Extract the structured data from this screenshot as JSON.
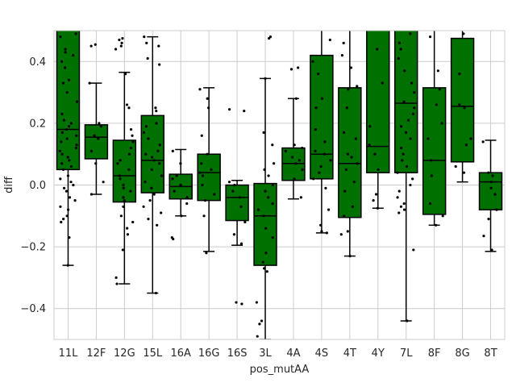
{
  "chart_data": {
    "type": "box",
    "xlabel": "pos_mutAA",
    "ylabel": "diff",
    "ylim": [
      -0.5,
      0.5
    ],
    "yticks": [
      -0.4,
      -0.2,
      0.0,
      0.2,
      0.4
    ],
    "ytick_labels": [
      "−0.4",
      "−0.2",
      "0.0",
      "0.2",
      "0.4"
    ],
    "grid": true,
    "box_color": "#007000",
    "point_color": "#000000",
    "grid_color": "#cccccc",
    "categories": [
      "11L",
      "12F",
      "12G",
      "15L",
      "16A",
      "16G",
      "16S",
      "3L",
      "4A",
      "4S",
      "4T",
      "4Y",
      "7L",
      "8F",
      "8G",
      "8T"
    ],
    "boxes": [
      {
        "label": "11L",
        "whislo": -0.26,
        "q1": 0.05,
        "med": 0.18,
        "q3": 0.52,
        "whishi": 0.55
      },
      {
        "label": "12F",
        "whislo": -0.03,
        "q1": 0.085,
        "med": 0.155,
        "q3": 0.195,
        "whishi": 0.33
      },
      {
        "label": "12G",
        "whislo": -0.32,
        "q1": -0.055,
        "med": 0.03,
        "q3": 0.145,
        "whishi": 0.365
      },
      {
        "label": "15L",
        "whislo": -0.35,
        "q1": -0.025,
        "med": 0.08,
        "q3": 0.225,
        "whishi": 0.48
      },
      {
        "label": "16A",
        "whislo": -0.1,
        "q1": -0.045,
        "med": -0.005,
        "q3": 0.035,
        "whishi": 0.115
      },
      {
        "label": "16G",
        "whislo": -0.215,
        "q1": -0.05,
        "med": 0.04,
        "q3": 0.1,
        "whishi": 0.315
      },
      {
        "label": "16S",
        "whislo": -0.195,
        "q1": -0.115,
        "med": -0.04,
        "q3": 0.0,
        "whishi": 0.015
      },
      {
        "label": "3L",
        "whislo": -0.5,
        "q1": -0.26,
        "med": -0.1,
        "q3": 0.005,
        "whishi": 0.345
      },
      {
        "label": "4A",
        "whislo": -0.045,
        "q1": 0.015,
        "med": 0.07,
        "q3": 0.12,
        "whishi": 0.28
      },
      {
        "label": "4S",
        "whislo": -0.155,
        "q1": 0.02,
        "med": 0.1,
        "q3": 0.42,
        "whishi": 0.55
      },
      {
        "label": "4T",
        "whislo": -0.23,
        "q1": -0.105,
        "med": 0.07,
        "q3": 0.315,
        "whishi": 0.55
      },
      {
        "label": "4Y",
        "whislo": -0.075,
        "q1": 0.04,
        "med": 0.125,
        "q3": 0.52,
        "whishi": 0.55
      },
      {
        "label": "7L",
        "whislo": -0.44,
        "q1": 0.04,
        "med": 0.265,
        "q3": 0.52,
        "whishi": 0.55
      },
      {
        "label": "8F",
        "whislo": -0.13,
        "q1": -0.095,
        "med": 0.08,
        "q3": 0.315,
        "whishi": 0.55
      },
      {
        "label": "8G",
        "whislo": 0.01,
        "q1": 0.075,
        "med": 0.255,
        "q3": 0.475,
        "whishi": 0.55
      },
      {
        "label": "8T",
        "whislo": -0.215,
        "q1": -0.08,
        "med": 0.01,
        "q3": 0.04,
        "whishi": 0.145
      }
    ],
    "points": [
      {
        "label": "11L",
        "y": [
          -0.26,
          -0.17,
          -0.12,
          -0.11,
          -0.1,
          -0.08,
          -0.07,
          -0.05,
          -0.04,
          -0.02,
          -0.01,
          0.0,
          0.01,
          0.02,
          0.03,
          0.05,
          0.06,
          0.07,
          0.08,
          0.09,
          0.1,
          0.11,
          0.12,
          0.13,
          0.14,
          0.15,
          0.16,
          0.17,
          0.18,
          0.19,
          0.2,
          0.21,
          0.23,
          0.27,
          0.3,
          0.33,
          0.34,
          0.38,
          0.4,
          0.42,
          0.43,
          0.44,
          0.48,
          0.49
        ]
      },
      {
        "label": "12F",
        "y": [
          -0.03,
          0.01,
          0.07,
          0.11,
          0.15,
          0.16,
          0.19,
          0.2,
          0.33,
          0.45,
          0.455
        ]
      },
      {
        "label": "12G",
        "y": [
          -0.32,
          -0.3,
          -0.21,
          -0.16,
          -0.14,
          -0.12,
          -0.1,
          -0.07,
          -0.05,
          -0.04,
          -0.02,
          -0.01,
          0.0,
          0.02,
          0.03,
          0.05,
          0.07,
          0.08,
          0.1,
          0.12,
          0.14,
          0.16,
          0.18,
          0.25,
          0.26,
          0.36,
          0.44,
          0.45,
          0.46,
          0.47,
          0.475
        ]
      },
      {
        "label": "15L",
        "y": [
          -0.35,
          -0.13,
          -0.11,
          -0.09,
          -0.07,
          -0.05,
          -0.03,
          -0.01,
          0.01,
          0.03,
          0.05,
          0.07,
          0.08,
          0.09,
          0.1,
          0.11,
          0.13,
          0.15,
          0.17,
          0.19,
          0.2,
          0.24,
          0.25,
          0.39,
          0.41,
          0.45,
          0.46,
          0.48
        ]
      },
      {
        "label": "16A",
        "y": [
          -0.175,
          -0.17,
          -0.1,
          -0.06,
          -0.04,
          -0.02,
          0.0,
          0.02,
          0.03,
          0.07,
          0.11
        ]
      },
      {
        "label": "16G",
        "y": [
          -0.22,
          -0.1,
          -0.05,
          -0.03,
          0.0,
          0.03,
          0.04,
          0.05,
          0.07,
          0.1,
          0.16,
          0.25,
          0.28,
          0.31
        ]
      },
      {
        "label": "16S",
        "y": [
          -0.385,
          -0.38,
          -0.19,
          -0.16,
          -0.12,
          -0.07,
          -0.04,
          -0.02,
          0.0,
          0.01,
          0.24,
          0.245
        ]
      },
      {
        "label": "3L",
        "y": [
          -0.49,
          -0.45,
          -0.44,
          -0.38,
          -0.28,
          -0.27,
          -0.25,
          -0.22,
          -0.17,
          -0.14,
          -0.1,
          -0.08,
          -0.06,
          -0.04,
          -0.02,
          0.0,
          0.03,
          0.05,
          0.07,
          0.13,
          0.17,
          0.345,
          0.475,
          0.48
        ]
      },
      {
        "label": "4A",
        "y": [
          -0.04,
          0.02,
          0.05,
          0.07,
          0.08,
          0.09,
          0.11,
          0.12,
          0.13,
          0.28,
          0.375,
          0.38
        ]
      },
      {
        "label": "4S",
        "y": [
          -0.155,
          -0.15,
          -0.13,
          -0.08,
          -0.01,
          0.02,
          0.04,
          0.06,
          0.08,
          0.1,
          0.11,
          0.14,
          0.18,
          0.25,
          0.28,
          0.36,
          0.4,
          0.47
        ]
      },
      {
        "label": "4T",
        "y": [
          -0.23,
          -0.16,
          -0.15,
          -0.1,
          -0.07,
          -0.02,
          0.01,
          0.05,
          0.07,
          0.09,
          0.1,
          0.15,
          0.17,
          0.25,
          0.31,
          0.32,
          0.38,
          0.42,
          0.46
        ]
      },
      {
        "label": "4Y",
        "y": [
          -0.075,
          -0.05,
          -0.03,
          0.05,
          0.1,
          0.13,
          0.19,
          0.33,
          0.44
        ]
      },
      {
        "label": "7L",
        "y": [
          -0.44,
          -0.21,
          -0.09,
          -0.08,
          -0.07,
          -0.06,
          -0.04,
          -0.02,
          0.0,
          0.02,
          0.04,
          0.06,
          0.08,
          0.1,
          0.12,
          0.15,
          0.17,
          0.19,
          0.21,
          0.23,
          0.25,
          0.27,
          0.3,
          0.33,
          0.37,
          0.41,
          0.44,
          0.46,
          0.49
        ]
      },
      {
        "label": "8F",
        "y": [
          -0.13,
          -0.1,
          -0.06,
          0.03,
          0.08,
          0.15,
          0.2,
          0.26,
          0.31,
          0.37,
          0.48
        ]
      },
      {
        "label": "8G",
        "y": [
          0.04,
          0.06,
          0.13,
          0.15,
          0.25,
          0.26,
          0.36,
          0.49
        ]
      },
      {
        "label": "8T",
        "y": [
          -0.21,
          -0.165,
          -0.11,
          -0.08,
          -0.03,
          -0.01,
          0.01,
          0.03,
          0.04,
          0.14
        ]
      }
    ]
  }
}
